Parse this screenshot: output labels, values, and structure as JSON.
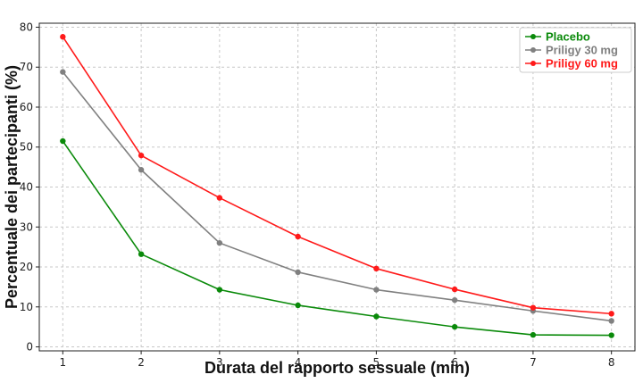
{
  "chart_data": {
    "type": "line",
    "xlabel": "Durata del rapporto sessuale (min)",
    "ylabel": "Percentuale dei partecipanti (%)",
    "x": [
      1,
      2,
      3,
      4,
      5,
      6,
      7,
      8
    ],
    "xlim": [
      0.7,
      8.3
    ],
    "ylim": [
      -1,
      81
    ],
    "xticks": [
      1,
      2,
      3,
      4,
      5,
      6,
      7,
      8
    ],
    "yticks": [
      0,
      10,
      20,
      30,
      40,
      50,
      60,
      70,
      80
    ],
    "grid": true,
    "legend_position": "top-right",
    "series": [
      {
        "name": "Placebo",
        "color": "#0a8a0a",
        "values": [
          51.5,
          23.2,
          14.3,
          10.4,
          7.6,
          5.0,
          3.0,
          2.9
        ]
      },
      {
        "name": "Priligy 30 mg",
        "color": "#808080",
        "values": [
          68.8,
          44.3,
          26.0,
          18.7,
          14.3,
          11.7,
          9.0,
          6.5
        ]
      },
      {
        "name": "Priligy 60 mg",
        "color": "#ff1a1a",
        "values": [
          77.6,
          47.9,
          37.3,
          27.6,
          19.6,
          14.4,
          9.8,
          8.3
        ]
      }
    ]
  }
}
